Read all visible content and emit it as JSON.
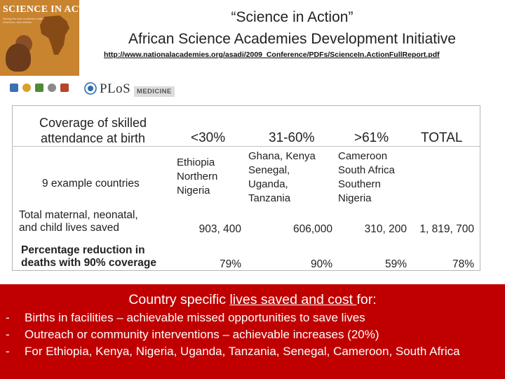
{
  "cover": {
    "title": "SCIENCE IN ACTION",
    "subtitle": "Saving the lives of Africa's mothers, newborns, and children"
  },
  "header": {
    "title_line1": "“Science in Action”",
    "title_line2": "African Science Academies Development Initiative",
    "url": "http://www.nationalacademies.org/asadi/2009_Conference/PDFs/ScienceIn.ActionFullReport.pdf"
  },
  "plos": {
    "name": "PLoS",
    "badge": "MEDICINE"
  },
  "table": {
    "header": {
      "label": "Coverage of skilled attendance at birth",
      "col1": "<30%",
      "col2": "31-60%",
      "col3": ">61%",
      "col4": "TOTAL"
    },
    "countries_row": {
      "label": "9 example countries",
      "col1": [
        "Ethiopia",
        "Northern",
        "Nigeria"
      ],
      "col2": [
        "Ghana, Kenya",
        "Senegal,",
        "Uganda,",
        "Tanzania"
      ],
      "col3": [
        "Cameroon",
        "South Africa",
        "Southern",
        "Nigeria"
      ]
    },
    "lives_row": {
      "label_line1": "Total maternal, neonatal,",
      "label_line2": "and child lives saved",
      "col1": "903, 400",
      "col2": "606,000",
      "col3": "310, 200",
      "col4": "1, 819, 700"
    },
    "reduction_row": {
      "label_line1": "Percentage reduction in",
      "label_line2": "deaths with 90% coverage",
      "col1": "79%",
      "col2": "90%",
      "col3": "59%",
      "col4": "78%"
    }
  },
  "panel": {
    "title_prefix": "Country specific ",
    "title_underlined": "lives saved and cost ",
    "title_suffix": "for:",
    "bullet_marker": "-",
    "bullets": [
      "Births in facilities – achievable missed opportunities to save lives",
      "Outreach or community interventions – achievable increases (20%)",
      "For Ethiopia, Kenya, Nigeria, Uganda, Tanzania, Senegal, Cameroon, South Africa"
    ]
  },
  "colors": {
    "panel_red": "#c00000",
    "cover_orange": "#c9842f"
  }
}
